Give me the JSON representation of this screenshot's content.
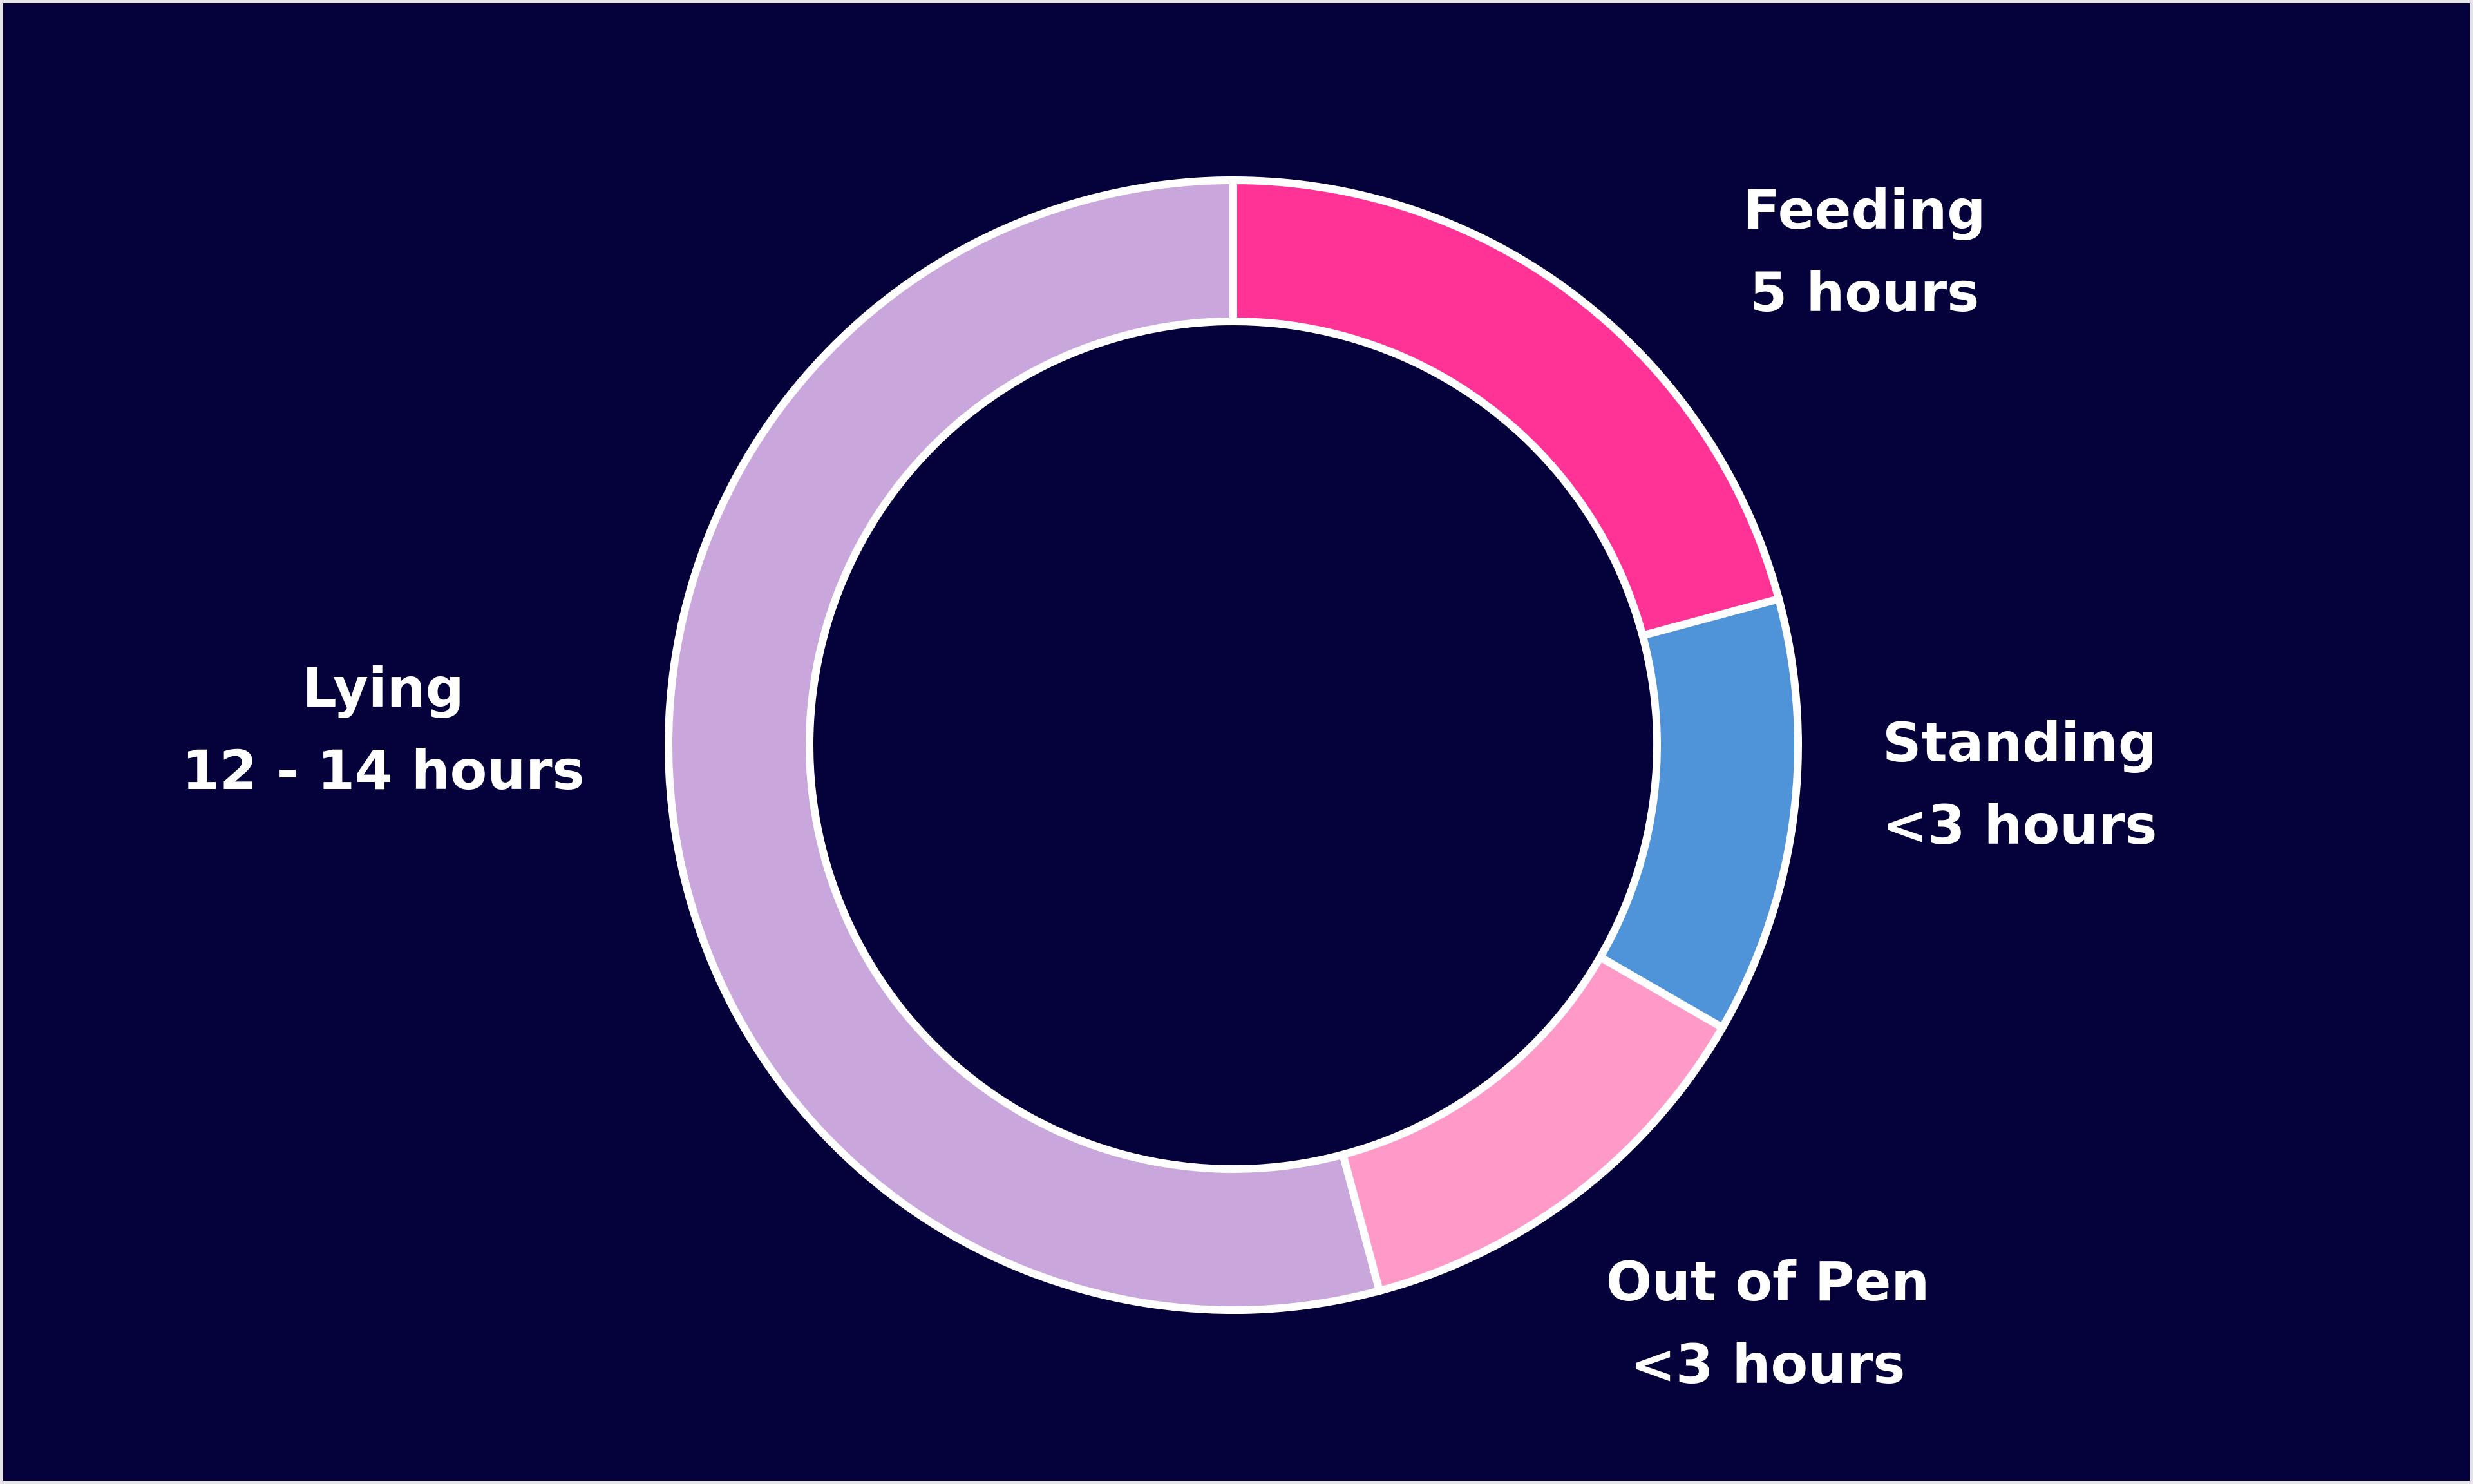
{
  "chart_data": {
    "type": "pie",
    "style": "donut",
    "title": "",
    "start_angle_deg": 0,
    "direction": "clockwise",
    "segment_border_color": "#ffffff",
    "background_color": "#05023b",
    "slices": [
      {
        "label": "Feeding",
        "value_label": "5 hours",
        "value": 5,
        "color": "#ff3396"
      },
      {
        "label": "Standing",
        "value_label": "<3 hours",
        "value": 3,
        "color": "#4f94d9"
      },
      {
        "label": "Out of Pen",
        "value_label": "<3 hours",
        "value": 3,
        "color": "#ff9ac8"
      },
      {
        "label": "Lying",
        "value_label": "12 - 14 hours",
        "value": 13,
        "color": "#c9a6dc"
      }
    ]
  }
}
